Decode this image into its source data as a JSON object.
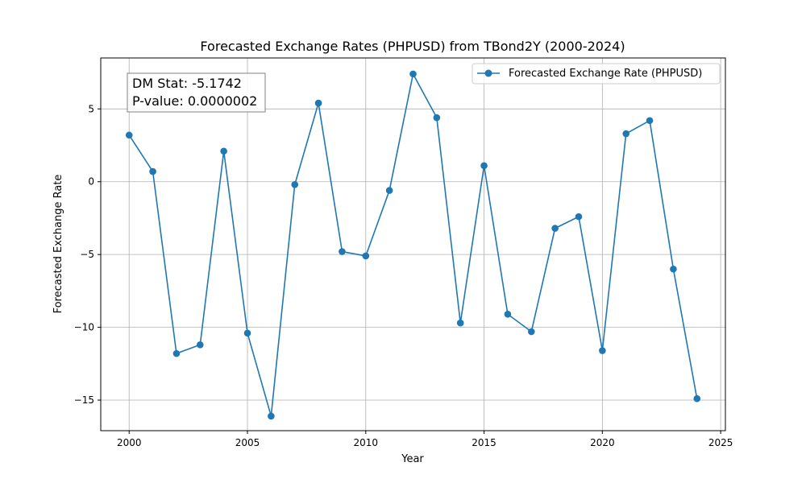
{
  "chart_data": {
    "type": "line",
    "title": "Forecasted Exchange Rates (PHPUSD) from TBond2Y (2000-2024)",
    "xlabel": "Year",
    "ylabel": "Forecasted Exchange Rate",
    "xlim": [
      1998.8,
      2025.2
    ],
    "ylim": [
      -17.1,
      8.5
    ],
    "xticks": [
      2000,
      2005,
      2010,
      2015,
      2020,
      2025
    ],
    "yticks": [
      -15,
      -10,
      -5,
      0,
      5
    ],
    "xtick_labels": [
      "2000",
      "2005",
      "2010",
      "2015",
      "2020",
      "2025"
    ],
    "ytick_labels": [
      "−15",
      "−10",
      "−5",
      "0",
      "5"
    ],
    "grid": true,
    "legend": {
      "position": "top-right"
    },
    "series": [
      {
        "name": "Forecasted Exchange Rate (PHPUSD)",
        "color": "#1f77b4",
        "marker": "circle",
        "x": [
          2000,
          2001,
          2002,
          2003,
          2004,
          2005,
          2006,
          2007,
          2008,
          2009,
          2010,
          2011,
          2012,
          2013,
          2014,
          2015,
          2016,
          2017,
          2018,
          2019,
          2020,
          2021,
          2022,
          2023,
          2024
        ],
        "y": [
          3.2,
          0.7,
          -11.8,
          -11.2,
          2.1,
          -10.4,
          -16.1,
          -0.2,
          5.4,
          -4.8,
          -5.1,
          -0.6,
          7.4,
          4.4,
          -9.7,
          1.1,
          -9.1,
          -10.3,
          -3.2,
          -2.4,
          -11.6,
          3.3,
          4.2,
          -6.0,
          -14.9
        ]
      }
    ],
    "annotation": {
      "line1": "DM Stat: -5.1742",
      "line2": "P-value: 0.0000002"
    }
  }
}
